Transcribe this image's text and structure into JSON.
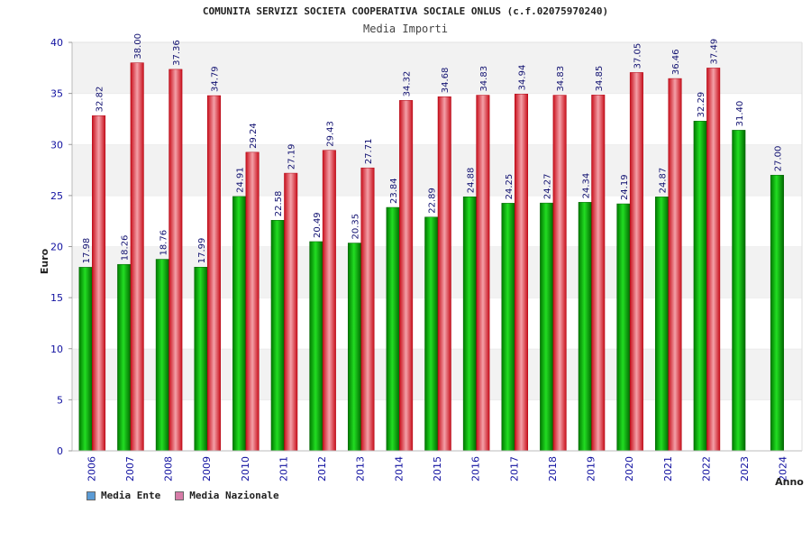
{
  "chart_data": {
    "type": "bar",
    "title": "COMUNITA SERVIZI SOCIETA COOPERATIVA SOCIALE ONLUS (c.f.02075970240)",
    "subtitle": "Media Importi",
    "xlabel": "Anno",
    "ylabel": "Euro",
    "ylim": [
      0,
      40
    ],
    "yticks": [
      0,
      5,
      10,
      15,
      20,
      25,
      30,
      35,
      40
    ],
    "categories": [
      "2006",
      "2007",
      "2008",
      "2009",
      "2010",
      "2011",
      "2012",
      "2013",
      "2014",
      "2015",
      "2016",
      "2017",
      "2018",
      "2019",
      "2020",
      "2021",
      "2022",
      "2023",
      "2024"
    ],
    "series": [
      {
        "name": "Media Ente",
        "color": "#00b400",
        "legend_color": "#5b9bd5",
        "values": [
          17.98,
          18.26,
          18.76,
          17.99,
          24.91,
          22.58,
          20.49,
          20.35,
          23.84,
          22.89,
          24.88,
          24.25,
          24.27,
          24.34,
          24.19,
          24.87,
          32.29,
          31.4,
          27.0
        ],
        "labels": [
          "17.98",
          "18.26",
          "18.76",
          "17.99",
          "24.91",
          "22.58",
          "20.49",
          "20.35",
          "23.84",
          "22.89",
          "24.88",
          "24.25",
          "24.27",
          "24.34",
          "24.19",
          "24.87",
          "32.29",
          "31.40",
          "27.00"
        ]
      },
      {
        "name": "Media Nazionale",
        "color": "#e8202c",
        "legend_color": "#d77ca8",
        "values": [
          32.82,
          38.0,
          37.36,
          34.79,
          29.24,
          27.19,
          29.43,
          27.71,
          34.32,
          34.68,
          34.83,
          34.94,
          34.83,
          34.85,
          37.05,
          36.46,
          37.49,
          null,
          null
        ],
        "labels": [
          "32.82",
          "38.00",
          "37.36",
          "34.79",
          "29.24",
          "27.19",
          "29.43",
          "27.71",
          "34.32",
          "34.68",
          "34.83",
          "34.94",
          "34.83",
          "34.85",
          "37.05",
          "36.46",
          "37.49",
          null,
          null
        ]
      }
    ],
    "grid": true,
    "legend_position": "bottom-left"
  }
}
